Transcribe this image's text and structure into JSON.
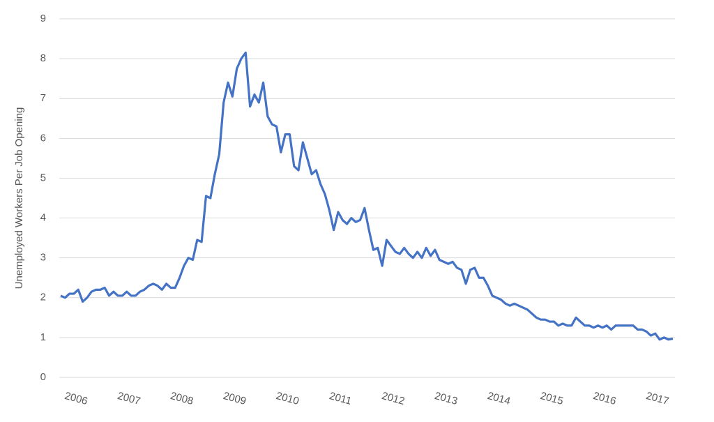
{
  "chart_data": {
    "type": "line",
    "y_label": "Unemployed Workers Per Job Opening",
    "categories": [
      "2006",
      null,
      null,
      null,
      null,
      null,
      null,
      null,
      null,
      null,
      null,
      null,
      "2007",
      null,
      null,
      null,
      null,
      null,
      null,
      null,
      null,
      null,
      null,
      null,
      "2008",
      null,
      null,
      null,
      null,
      null,
      null,
      null,
      null,
      null,
      null,
      null,
      "2009",
      null,
      null,
      null,
      null,
      null,
      null,
      null,
      null,
      null,
      null,
      null,
      "2010",
      null,
      null,
      null,
      null,
      null,
      null,
      null,
      null,
      null,
      null,
      null,
      "2011",
      null,
      null,
      null,
      null,
      null,
      null,
      null,
      null,
      null,
      null,
      null,
      "2012",
      null,
      null,
      null,
      null,
      null,
      null,
      null,
      null,
      null,
      null,
      null,
      "2013",
      null,
      null,
      null,
      null,
      null,
      null,
      null,
      null,
      null,
      null,
      null,
      "2014",
      null,
      null,
      null,
      null,
      null,
      null,
      null,
      null,
      null,
      null,
      null,
      "2015",
      null,
      null,
      null,
      null,
      null,
      null,
      null,
      null,
      null,
      null,
      null,
      "2016",
      null,
      null,
      null,
      null,
      null,
      null,
      null,
      null,
      null,
      null,
      null,
      "2017",
      null,
      null,
      null,
      null,
      null,
      null,
      null
    ],
    "values": [
      2.05,
      2.0,
      2.1,
      2.1,
      2.2,
      1.9,
      2.0,
      2.15,
      2.2,
      2.2,
      2.25,
      2.05,
      2.15,
      2.05,
      2.05,
      2.15,
      2.05,
      2.05,
      2.15,
      2.2,
      2.3,
      2.35,
      2.3,
      2.2,
      2.35,
      2.25,
      2.25,
      2.5,
      2.8,
      3.0,
      2.95,
      3.45,
      3.4,
      4.55,
      4.5,
      5.1,
      5.6,
      6.9,
      7.4,
      7.05,
      7.75,
      8.0,
      8.15,
      6.8,
      7.1,
      6.9,
      7.4,
      6.55,
      6.35,
      6.3,
      5.65,
      6.1,
      6.1,
      5.3,
      5.2,
      5.9,
      5.5,
      5.1,
      5.2,
      4.85,
      4.6,
      4.2,
      3.7,
      4.15,
      3.95,
      3.85,
      4.0,
      3.9,
      3.95,
      4.25,
      3.7,
      3.2,
      3.25,
      2.8,
      3.45,
      3.3,
      3.15,
      3.1,
      3.25,
      3.1,
      3.0,
      3.15,
      3.0,
      3.25,
      3.05,
      3.2,
      2.95,
      2.9,
      2.85,
      2.9,
      2.75,
      2.7,
      2.35,
      2.7,
      2.75,
      2.5,
      2.5,
      2.3,
      2.05,
      2.0,
      1.95,
      1.85,
      1.8,
      1.85,
      1.8,
      1.75,
      1.7,
      1.6,
      1.5,
      1.45,
      1.45,
      1.4,
      1.4,
      1.3,
      1.35,
      1.3,
      1.3,
      1.5,
      1.4,
      1.3,
      1.3,
      1.25,
      1.3,
      1.25,
      1.3,
      1.2,
      1.3,
      1.3,
      1.3,
      1.3,
      1.3,
      1.2,
      1.2,
      1.15,
      1.05,
      1.1,
      0.95,
      1.0,
      0.95,
      0.97
    ],
    "color": "#4472c4",
    "ylim": [
      0,
      9
    ],
    "yticks": [
      0,
      1,
      2,
      3,
      4,
      5,
      6,
      7,
      8,
      9
    ],
    "grid": true
  }
}
